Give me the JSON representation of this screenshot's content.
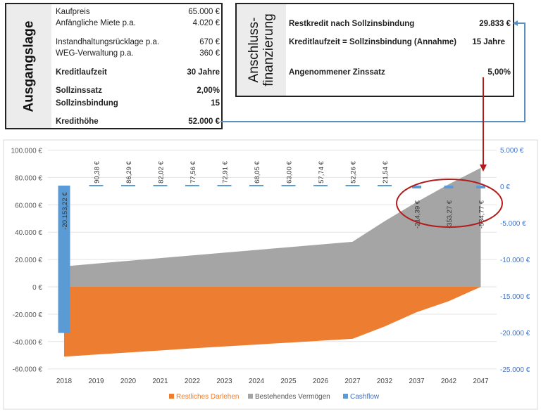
{
  "ausgangslage": {
    "title": "Ausgangslage",
    "rows": [
      {
        "label": "Kaufpreis",
        "value": "65.000 €",
        "bold": false
      },
      {
        "label": "Anfängliche Miete p.a.",
        "value": "4.020 €",
        "bold": false
      },
      {
        "label": "Instandhaltungsrücklage p.a.",
        "value": "670 €",
        "bold": false
      },
      {
        "label": "WEG-Verwaltung p.a.",
        "value": "360 €",
        "bold": false
      },
      {
        "label": "Kreditlaufzeit",
        "value": "30 Jahre",
        "bold": true
      },
      {
        "label": "Sollzinssatz",
        "value": "2,00%",
        "bold": true
      },
      {
        "label": "Sollzinsbindung",
        "value": "15",
        "bold": true
      },
      {
        "label": "Kredithöhe",
        "value": "52.000 €",
        "bold": true
      }
    ]
  },
  "anschluss": {
    "title_line1": "Anschluss-",
    "title_line2": "finanzierung",
    "rows": [
      {
        "label": "Restkredit nach Sollzinsbindung",
        "value": "29.833 €"
      },
      {
        "label": "Kreditlaufzeit = Sollzinsbindung (Annahme)",
        "value": "15 Jahre"
      },
      {
        "label": "Angenommener Zinssatz",
        "value": "5,00%"
      }
    ]
  },
  "colors": {
    "debt": "#ed7d31",
    "wealth": "#a5a5a5",
    "cashflow": "#5b9bd5",
    "connector": "#5b8fc0",
    "annotation": "#b01c1c"
  },
  "chart_data": {
    "type": "area+bar",
    "categories": [
      "2018",
      "2019",
      "2020",
      "2021",
      "2022",
      "2023",
      "2024",
      "2025",
      "2026",
      "2027",
      "2032",
      "2037",
      "2042",
      "2047"
    ],
    "series": [
      {
        "name": "Restliches Darlehen",
        "type": "area",
        "axis": "left",
        "values": [
          -51000,
          -49500,
          -48000,
          -46500,
          -45000,
          -43600,
          -42200,
          -40800,
          -39400,
          -38000,
          -29000,
          -18500,
          -10500,
          0
        ]
      },
      {
        "name": "Bestehendes Vermögen",
        "type": "area",
        "axis": "left",
        "values": [
          15000,
          17000,
          19000,
          21000,
          23000,
          25000,
          27000,
          29000,
          31000,
          33000,
          48000,
          62000,
          75000,
          87000
        ]
      },
      {
        "name": "Cashflow",
        "type": "bar",
        "axis": "right",
        "values": [
          -20153.22,
          90.38,
          86.29,
          82.02,
          77.56,
          72.91,
          68.05,
          63.0,
          57.74,
          52.26,
          21.54,
          -214.39,
          -353.27,
          -534.77
        ],
        "labels": [
          "-20.153,22 €",
          "90,38 €",
          "86,29 €",
          "82,02 €",
          "77,56 €",
          "72,91 €",
          "68,05 €",
          "63,00 €",
          "57,74 €",
          "52,26 €",
          "21,54 €",
          "-214,39 €",
          "-353,27 €",
          "-534,77 €"
        ]
      }
    ],
    "left_ticks": [
      "100.000 €",
      "80.000 €",
      "60.000 €",
      "40.000 €",
      "20.000 €",
      "0 €",
      "-20.000 €",
      "-40.000 €",
      "-60.000 €"
    ],
    "left_tick_values": [
      100000,
      80000,
      60000,
      40000,
      20000,
      0,
      -20000,
      -40000,
      -60000
    ],
    "right_ticks": [
      "5.000 €",
      "0 €",
      "-5.000 €",
      "-10.000 €",
      "-15.000 €",
      "-20.000 €",
      "-25.000 €"
    ],
    "right_tick_values": [
      5000,
      0,
      -5000,
      -10000,
      -15000,
      -20000,
      -25000
    ],
    "ylim_left": [
      -60000,
      100000
    ],
    "ylim_right": [
      -25000,
      5000
    ],
    "grid": true,
    "legend": "bottom"
  }
}
